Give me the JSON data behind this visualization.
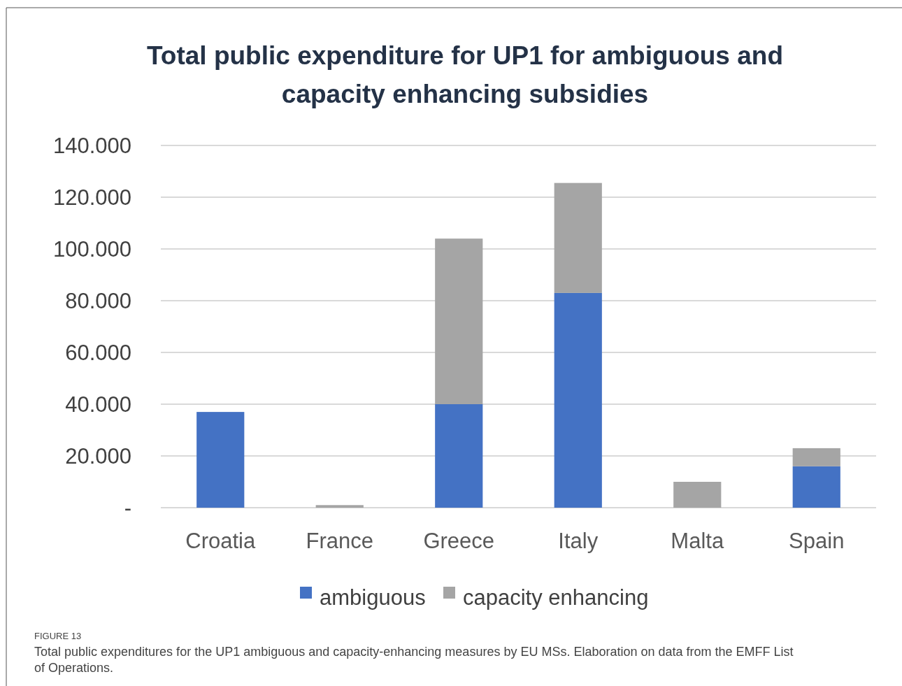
{
  "chart_data": {
    "type": "bar",
    "title": "Total public expenditure for UP1 for ambiguous and capacity enhancing subsidies",
    "categories": [
      "Croatia",
      "France",
      "Greece",
      "Italy",
      "Malta",
      "Spain"
    ],
    "series": [
      {
        "name": "ambiguous",
        "color": "#4472c4",
        "values": [
          37,
          0,
          40,
          83,
          0,
          16
        ]
      },
      {
        "name": "capacity enhancing",
        "color": "#a5a5a5",
        "values": [
          0,
          1,
          64,
          42.5,
          10,
          7
        ]
      }
    ],
    "stacked": true,
    "ylim": [
      0,
      140
    ],
    "yticks": [
      {
        "value": 0,
        "label": "-"
      },
      {
        "value": 20,
        "label": "20.000"
      },
      {
        "value": 40,
        "label": "40.000"
      },
      {
        "value": 60,
        "label": "60.000"
      },
      {
        "value": 80,
        "label": "80.000"
      },
      {
        "value": 100,
        "label": "100.000"
      },
      {
        "value": 120,
        "label": "120.000"
      },
      {
        "value": 140,
        "label": "140.000"
      }
    ],
    "grid": "y",
    "legend": "bottom",
    "annotations": [
      "FIGURE 13",
      "Total public expenditures for the UP1 ambiguous and capacity-enhancing measures by EU MSs. Elaboration on data from the EMFF List of Operations."
    ]
  }
}
